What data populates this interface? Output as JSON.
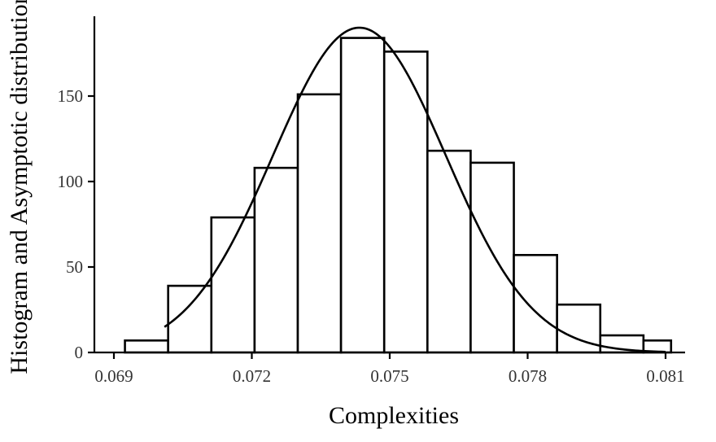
{
  "chart_data": {
    "type": "bar",
    "title": "",
    "xlabel": "Complexities",
    "ylabel": "Histogram and Asymptotic distribution",
    "xlim": [
      0.0687,
      0.0815
    ],
    "ylim": [
      0,
      190
    ],
    "x_ticks": [
      0.069,
      0.072,
      0.075,
      0.078,
      0.081
    ],
    "x_tick_labels": [
      "0.069",
      "0.072",
      "0.075",
      "0.078",
      "0.081"
    ],
    "y_ticks": [
      0,
      50,
      100,
      150
    ],
    "y_tick_labels": [
      "0",
      "50",
      "100",
      "150"
    ],
    "bins": [
      {
        "from": 0.06924,
        "to": 0.07018,
        "count": 7
      },
      {
        "from": 0.07018,
        "to": 0.07112,
        "count": 39
      },
      {
        "from": 0.07112,
        "to": 0.07206,
        "count": 79
      },
      {
        "from": 0.07206,
        "to": 0.073,
        "count": 108
      },
      {
        "from": 0.073,
        "to": 0.07394,
        "count": 151
      },
      {
        "from": 0.07394,
        "to": 0.07488,
        "count": 184
      },
      {
        "from": 0.07488,
        "to": 0.07582,
        "count": 176
      },
      {
        "from": 0.07582,
        "to": 0.07676,
        "count": 118
      },
      {
        "from": 0.07676,
        "to": 0.0777,
        "count": 111
      },
      {
        "from": 0.0777,
        "to": 0.07864,
        "count": 57
      },
      {
        "from": 0.07864,
        "to": 0.07958,
        "count": 28
      },
      {
        "from": 0.07958,
        "to": 0.08052,
        "count": 10
      },
      {
        "from": 0.08052,
        "to": 0.08112,
        "count": 7
      }
    ],
    "curve": {
      "type": "normal",
      "mean": 0.07434,
      "sd": 0.00188,
      "peak": 190,
      "x_range": [
        0.0701,
        0.081
      ]
    },
    "grid": false,
    "legend": "none"
  }
}
